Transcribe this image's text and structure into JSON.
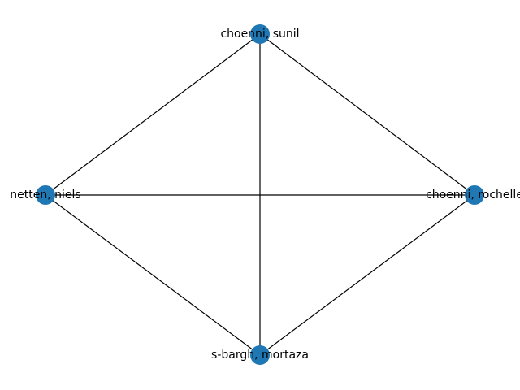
{
  "graph": {
    "node_color": "#1f77b4",
    "edge_color": "#000000",
    "nodes": [
      {
        "id": "n0",
        "label": "choenni, sunil"
      },
      {
        "id": "n1",
        "label": "netten, niels"
      },
      {
        "id": "n2",
        "label": "choenni, rochelle"
      },
      {
        "id": "n3",
        "label": "s-bargh, mortaza"
      }
    ],
    "edges": [
      [
        "n0",
        "n1"
      ],
      [
        "n0",
        "n2"
      ],
      [
        "n0",
        "n3"
      ],
      [
        "n1",
        "n2"
      ],
      [
        "n1",
        "n3"
      ],
      [
        "n2",
        "n3"
      ]
    ]
  }
}
